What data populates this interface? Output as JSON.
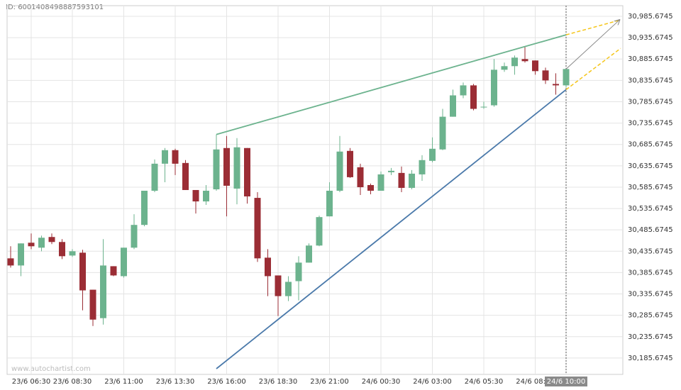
{
  "header": {
    "id_text": "ID: 6001408498887593101"
  },
  "watermark": "www.autochartist.com",
  "chart_data": {
    "type": "candlestick",
    "categories": [
      null,
      null,
      "23/6 06:30",
      null,
      null,
      null,
      "23/6 08:30",
      null,
      null,
      null,
      null,
      "23/6 11:00",
      null,
      null,
      null,
      null,
      "23/6 13:30",
      null,
      null,
      null,
      null,
      "23/6 16:00",
      null,
      null,
      null,
      null,
      "23/6 18:30",
      null,
      null,
      null,
      null,
      "23/6 21:00",
      null,
      null,
      null,
      null,
      "24/6 00:30",
      null,
      null,
      null,
      null,
      "24/6 03:00",
      null,
      null,
      null,
      null,
      "24/6 05:30",
      null,
      null,
      null,
      null,
      "24/6 08:00",
      null,
      null,
      "24/6 10:00"
    ],
    "open": [
      30419.0,
      30402.3,
      30455.6,
      30444.0,
      30469.0,
      30457.3,
      30425.6,
      30432.3,
      30345.6,
      30279.0,
      30400.6,
      30377.3,
      30444.0,
      30497.3,
      30577.3,
      30640.6,
      30672.3,
      30642.3,
      30579.0,
      30552.3,
      30580.6,
      30677.3,
      30582.3,
      30677.3,
      30560.6,
      30420.6,
      30379.0,
      30330.6,
      30365.6,
      30409.0,
      30449.0,
      30517.3,
      30577.3,
      30670.6,
      30632.3,
      30590.6,
      30577.3,
      30620.6,
      30619.0,
      30584.0,
      30615.6,
      30647.3,
      30674.0,
      30750.6,
      30800.6,
      30824.0,
      30772.3,
      30777.3,
      30860.6,
      30869.0,
      30885.6,
      30882.3,
      30859.0,
      30827.3,
      30824.0
    ],
    "high": [
      30447.3,
      30454.0,
      30477.3,
      30472.3,
      30477.3,
      30464.0,
      30440.6,
      30439.0,
      30345.6,
      30464.0,
      30400.6,
      30444.0,
      30522.3,
      30577.3,
      30650.6,
      30677.3,
      30675.6,
      30649.0,
      30579.0,
      30590.6,
      30709.0,
      30705.6,
      30700.6,
      30677.3,
      30574.0,
      30440.6,
      30379.0,
      30377.3,
      30424.0,
      30454.0,
      30519.0,
      30597.3,
      30705.6,
      30677.3,
      30640.6,
      30594.0,
      30622.3,
      30630.6,
      30634.0,
      30625.6,
      30660.6,
      30702.3,
      30769.0,
      30814.0,
      30830.6,
      30827.3,
      30785.6,
      30885.6,
      30877.3,
      30894.0,
      30913.9,
      30882.3,
      30865.6,
      30852.3,
      30862.3
    ],
    "low": [
      30397.3,
      30377.3,
      30440.6,
      30435.6,
      30452.3,
      30417.3,
      30422.3,
      30297.3,
      30260.6,
      30264.0,
      30377.3,
      30374.0,
      30440.6,
      30494.0,
      30574.0,
      30597.3,
      30614.0,
      30579.0,
      30524.0,
      30544.0,
      30577.3,
      30517.3,
      30545.6,
      30547.3,
      30410.6,
      30330.6,
      30284.0,
      30319.0,
      30320.6,
      30409.0,
      30447.3,
      30517.3,
      30574.0,
      30607.3,
      30567.3,
      30569.0,
      30577.3,
      30614.0,
      30574.0,
      30580.6,
      30600.6,
      30644.0,
      30672.3,
      30750.6,
      30794.0,
      30765.6,
      30769.0,
      30774.0,
      30855.6,
      30849.0,
      30877.3,
      30849.0,
      30827.3,
      30802.3,
      30819.0
    ],
    "close": [
      30402.3,
      30454.0,
      30447.3,
      30467.3,
      30457.3,
      30424.0,
      30435.6,
      30344.0,
      30275.6,
      30402.3,
      30379.0,
      30444.0,
      30497.3,
      30577.3,
      30640.6,
      30672.3,
      30640.6,
      30579.0,
      30552.3,
      30577.3,
      30674.0,
      30589.0,
      30679.0,
      30564.0,
      30419.0,
      30377.3,
      30330.6,
      30364.0,
      30409.0,
      30449.0,
      30515.6,
      30577.3,
      30669.0,
      30609.0,
      30585.6,
      30577.3,
      30615.6,
      30624.0,
      30584.0,
      30617.3,
      30649.0,
      30675.6,
      30750.6,
      30800.6,
      30824.0,
      30769.0,
      30774.0,
      30860.6,
      30869.0,
      30889.0,
      30880.6,
      30857.3,
      30835.6,
      30824.0,
      30862.3
    ],
    "up_color": "#6cb38e",
    "down_color": "#9b2d35",
    "highlight_index": 54,
    "ylim": [
      30147.3,
      31010.6
    ],
    "yticks": [
      {
        "value": 30185.6745,
        "label": "30,185.6745"
      },
      {
        "value": 30235.6745,
        "label": "30,235.6745"
      },
      {
        "value": 30285.6745,
        "label": "30,285.6745"
      },
      {
        "value": 30335.6745,
        "label": "30,335.6745"
      },
      {
        "value": 30385.6745,
        "label": "30,385.6745"
      },
      {
        "value": 30435.6745,
        "label": "30,435.6745"
      },
      {
        "value": 30485.6745,
        "label": "30,485.6745"
      },
      {
        "value": 30535.6745,
        "label": "30,535.6745"
      },
      {
        "value": 30585.6745,
        "label": "30,585.6745"
      },
      {
        "value": 30635.6745,
        "label": "30,635.6745"
      },
      {
        "value": 30685.6745,
        "label": "30,685.6745"
      },
      {
        "value": 30735.6745,
        "label": "30,735.6745"
      },
      {
        "value": 30785.6745,
        "label": "30,785.6745"
      },
      {
        "value": 30835.6745,
        "label": "30,835.6745"
      },
      {
        "value": 30885.6745,
        "label": "30,885.6745"
      },
      {
        "value": 30935.6745,
        "label": "30,935.6745"
      },
      {
        "value": 30985.6745,
        "label": "30,985.6745"
      }
    ],
    "grid": true,
    "lines": [
      {
        "color": "#6cb38e",
        "x": [
          20,
          54
        ],
        "y": [
          30709.0,
          30942.3
        ]
      },
      {
        "color": "#4a79aa",
        "x": [
          20,
          54
        ],
        "y": [
          30160.6,
          30814.0
        ]
      },
      {
        "color": "#f5c518",
        "dashed": true,
        "x": [
          54,
          59.3
        ],
        "y": [
          30942.3,
          30977.3
        ]
      },
      {
        "color": "#f5c518",
        "dashed": true,
        "x": [
          54,
          59.3
        ],
        "y": [
          30814.0,
          30910.6
        ]
      },
      {
        "color": "#888888",
        "arrow": true,
        "x": [
          54,
          59.2
        ],
        "y": [
          30862.3,
          30977.3
        ]
      }
    ]
  }
}
